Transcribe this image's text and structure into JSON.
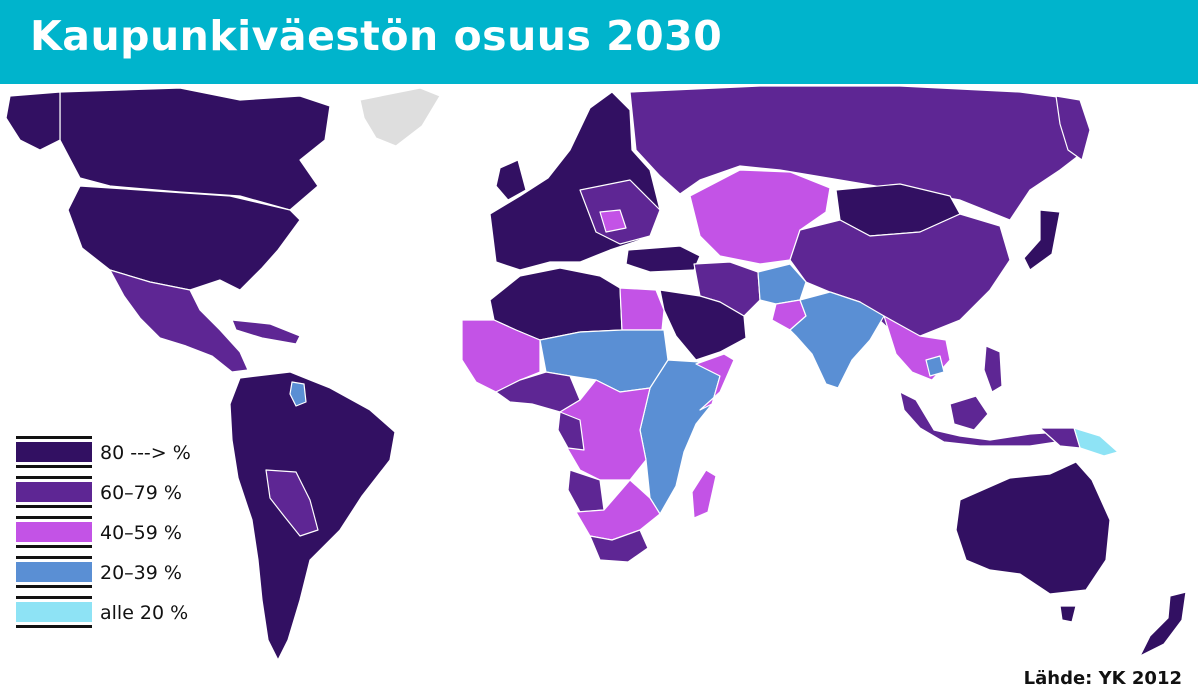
{
  "title": "Kaupunkiväestön osuus 2030",
  "source": "Lähde: YK 2012",
  "colors": {
    "header": "#00b4cc",
    "c80": "#321062",
    "c60": "#5e2694",
    "c40": "#c353e6",
    "c20": "#5a8fd4",
    "c0": "#8ee3f5",
    "nodata": "#dedede"
  },
  "legend": [
    {
      "label": "80  ---> %",
      "color": "#321062"
    },
    {
      "label": "60–79 %",
      "color": "#5e2694"
    },
    {
      "label": "40–59 %",
      "color": "#c353e6"
    },
    {
      "label": "20–39 %",
      "color": "#5a8fd4"
    },
    {
      "label": "alle 20 %",
      "color": "#8ee3f5"
    }
  ]
}
